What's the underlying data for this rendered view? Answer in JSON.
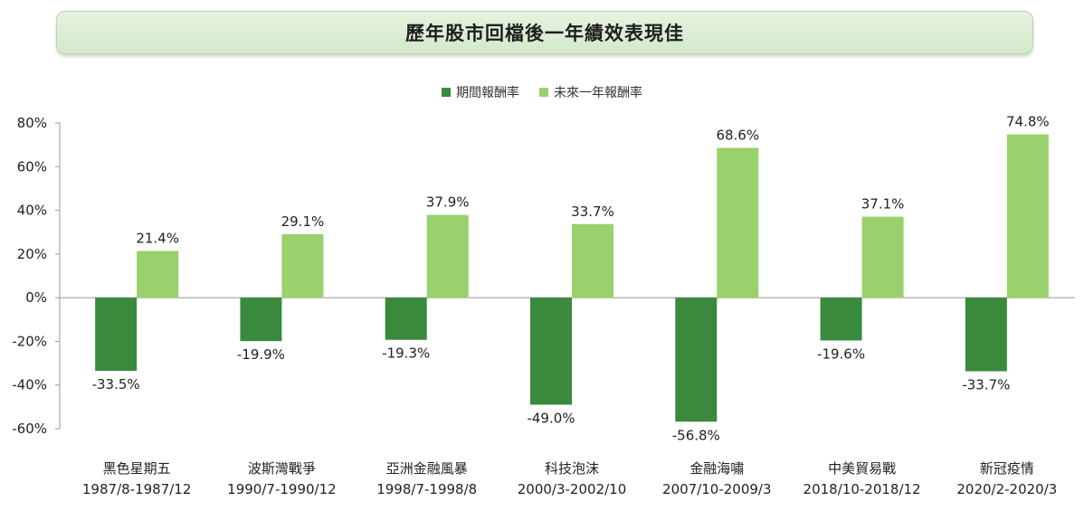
{
  "title": "歷年股市回檔後一年績效表現佳",
  "colors": {
    "period": "#3a8a3e",
    "future": "#99d16d"
  },
  "chart_data": {
    "type": "bar",
    "categories": [
      [
        "黑色星期五",
        "1987/8-1987/12"
      ],
      [
        "波斯灣戰爭",
        "1990/7-1990/12"
      ],
      [
        "亞洲金融風暴",
        "1998/7-1998/8"
      ],
      [
        "科技泡沫",
        "2000/3-2002/10"
      ],
      [
        "金融海嘯",
        "2007/10-2009/3"
      ],
      [
        "中美貿易戰",
        "2018/10-2018/12"
      ],
      [
        "新冠疫情",
        "2020/2-2020/3"
      ]
    ],
    "series": [
      {
        "name": "期間報酬率",
        "values": [
          -33.5,
          -19.9,
          -19.3,
          -49.0,
          -56.8,
          -19.6,
          -33.7
        ],
        "labels": [
          "-33.5%",
          "-19.9%",
          "-19.3%",
          "-49.0%",
          "-56.8%",
          "-19.6%",
          "-33.7%"
        ]
      },
      {
        "name": "未來一年報酬率",
        "values": [
          21.4,
          29.1,
          37.9,
          33.7,
          68.6,
          37.1,
          74.8
        ],
        "labels": [
          "21.4%",
          "29.1%",
          "37.9%",
          "33.7%",
          "68.6%",
          "37.1%",
          "74.8%"
        ]
      }
    ],
    "ylim": [
      -60,
      80
    ],
    "yticks": [
      {
        "value": 80,
        "label": "80%"
      },
      {
        "value": 60,
        "label": "60%"
      },
      {
        "value": 40,
        "label": "40%"
      },
      {
        "value": 20,
        "label": "20%"
      },
      {
        "value": 0,
        "label": "0%"
      },
      {
        "value": -20,
        "label": "-20%"
      },
      {
        "value": -40,
        "label": "-40%"
      },
      {
        "value": -60,
        "label": "-60%"
      }
    ],
    "grid": false,
    "legend_position": "top-center"
  }
}
